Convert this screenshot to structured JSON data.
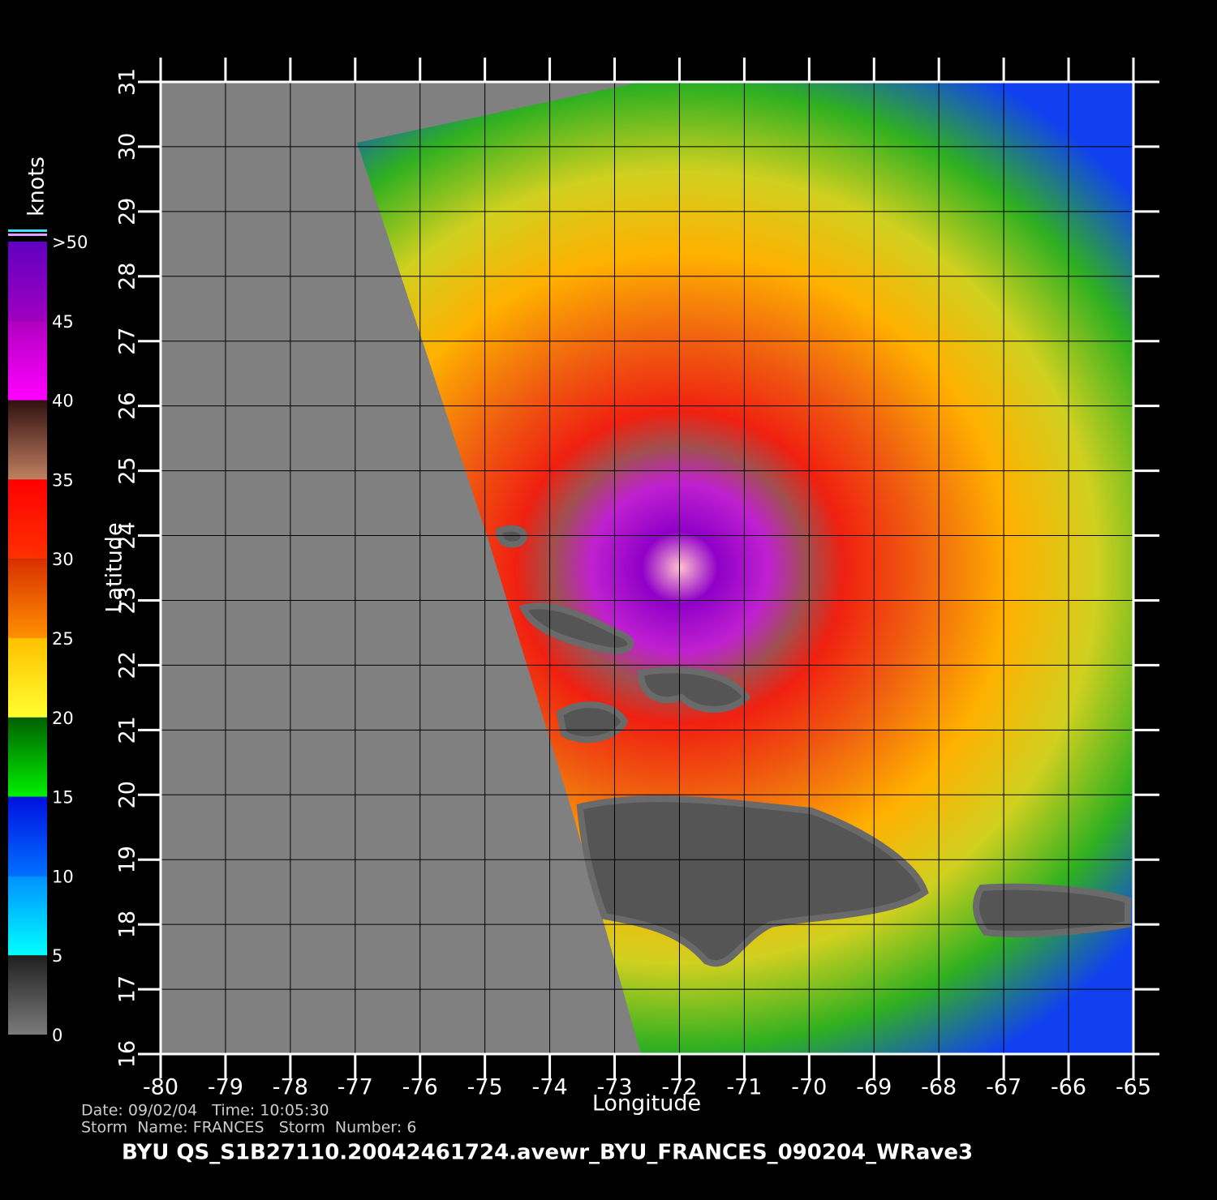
{
  "chart_data": {
    "type": "map",
    "xlabel": "Longitude",
    "ylabel": "Latitude",
    "xlim": [
      -80,
      -65
    ],
    "ylim": [
      16,
      31
    ],
    "xticks": [
      -80,
      -79,
      -78,
      -77,
      -76,
      -75,
      -74,
      -73,
      -72,
      -71,
      -70,
      -69,
      -68,
      -67,
      -66,
      -65
    ],
    "yticks": [
      16,
      17,
      18,
      19,
      20,
      21,
      22,
      23,
      24,
      25,
      26,
      27,
      28,
      29,
      30,
      31
    ],
    "grid": true,
    "colorbar": {
      "title": "knots",
      "lim": [
        0,
        50
      ],
      "ticks": [
        0,
        5,
        10,
        15,
        20,
        25,
        30,
        35,
        40,
        45,
        {
          "value": 50,
          "label": ">50"
        }
      ],
      "colors": [
        [
          "#7a7a7a",
          "#202020"
        ],
        [
          "#00ffff",
          "#0090ff"
        ],
        [
          "#0070ff",
          "#0010e0"
        ],
        [
          "#00f000",
          "#006000"
        ],
        [
          "#ffff30",
          "#ffc000"
        ],
        [
          "#ff9000",
          "#d83000"
        ],
        [
          "#ff3000",
          "#ff0000"
        ],
        [
          "#c08060",
          "#301010"
        ],
        [
          "#ff00ff",
          "#b000c0"
        ],
        [
          "#a000c0",
          "#6000c0"
        ]
      ]
    },
    "annotations": [
      "Date: 09/02/04   Time: 10:05:30",
      "Storm  Name: FRANCES   Storm  Number: 6"
    ],
    "title": "BYU  QS_S1B27110.20042461724.avewr_BYU_FRANCES_090204_WRave3"
  }
}
